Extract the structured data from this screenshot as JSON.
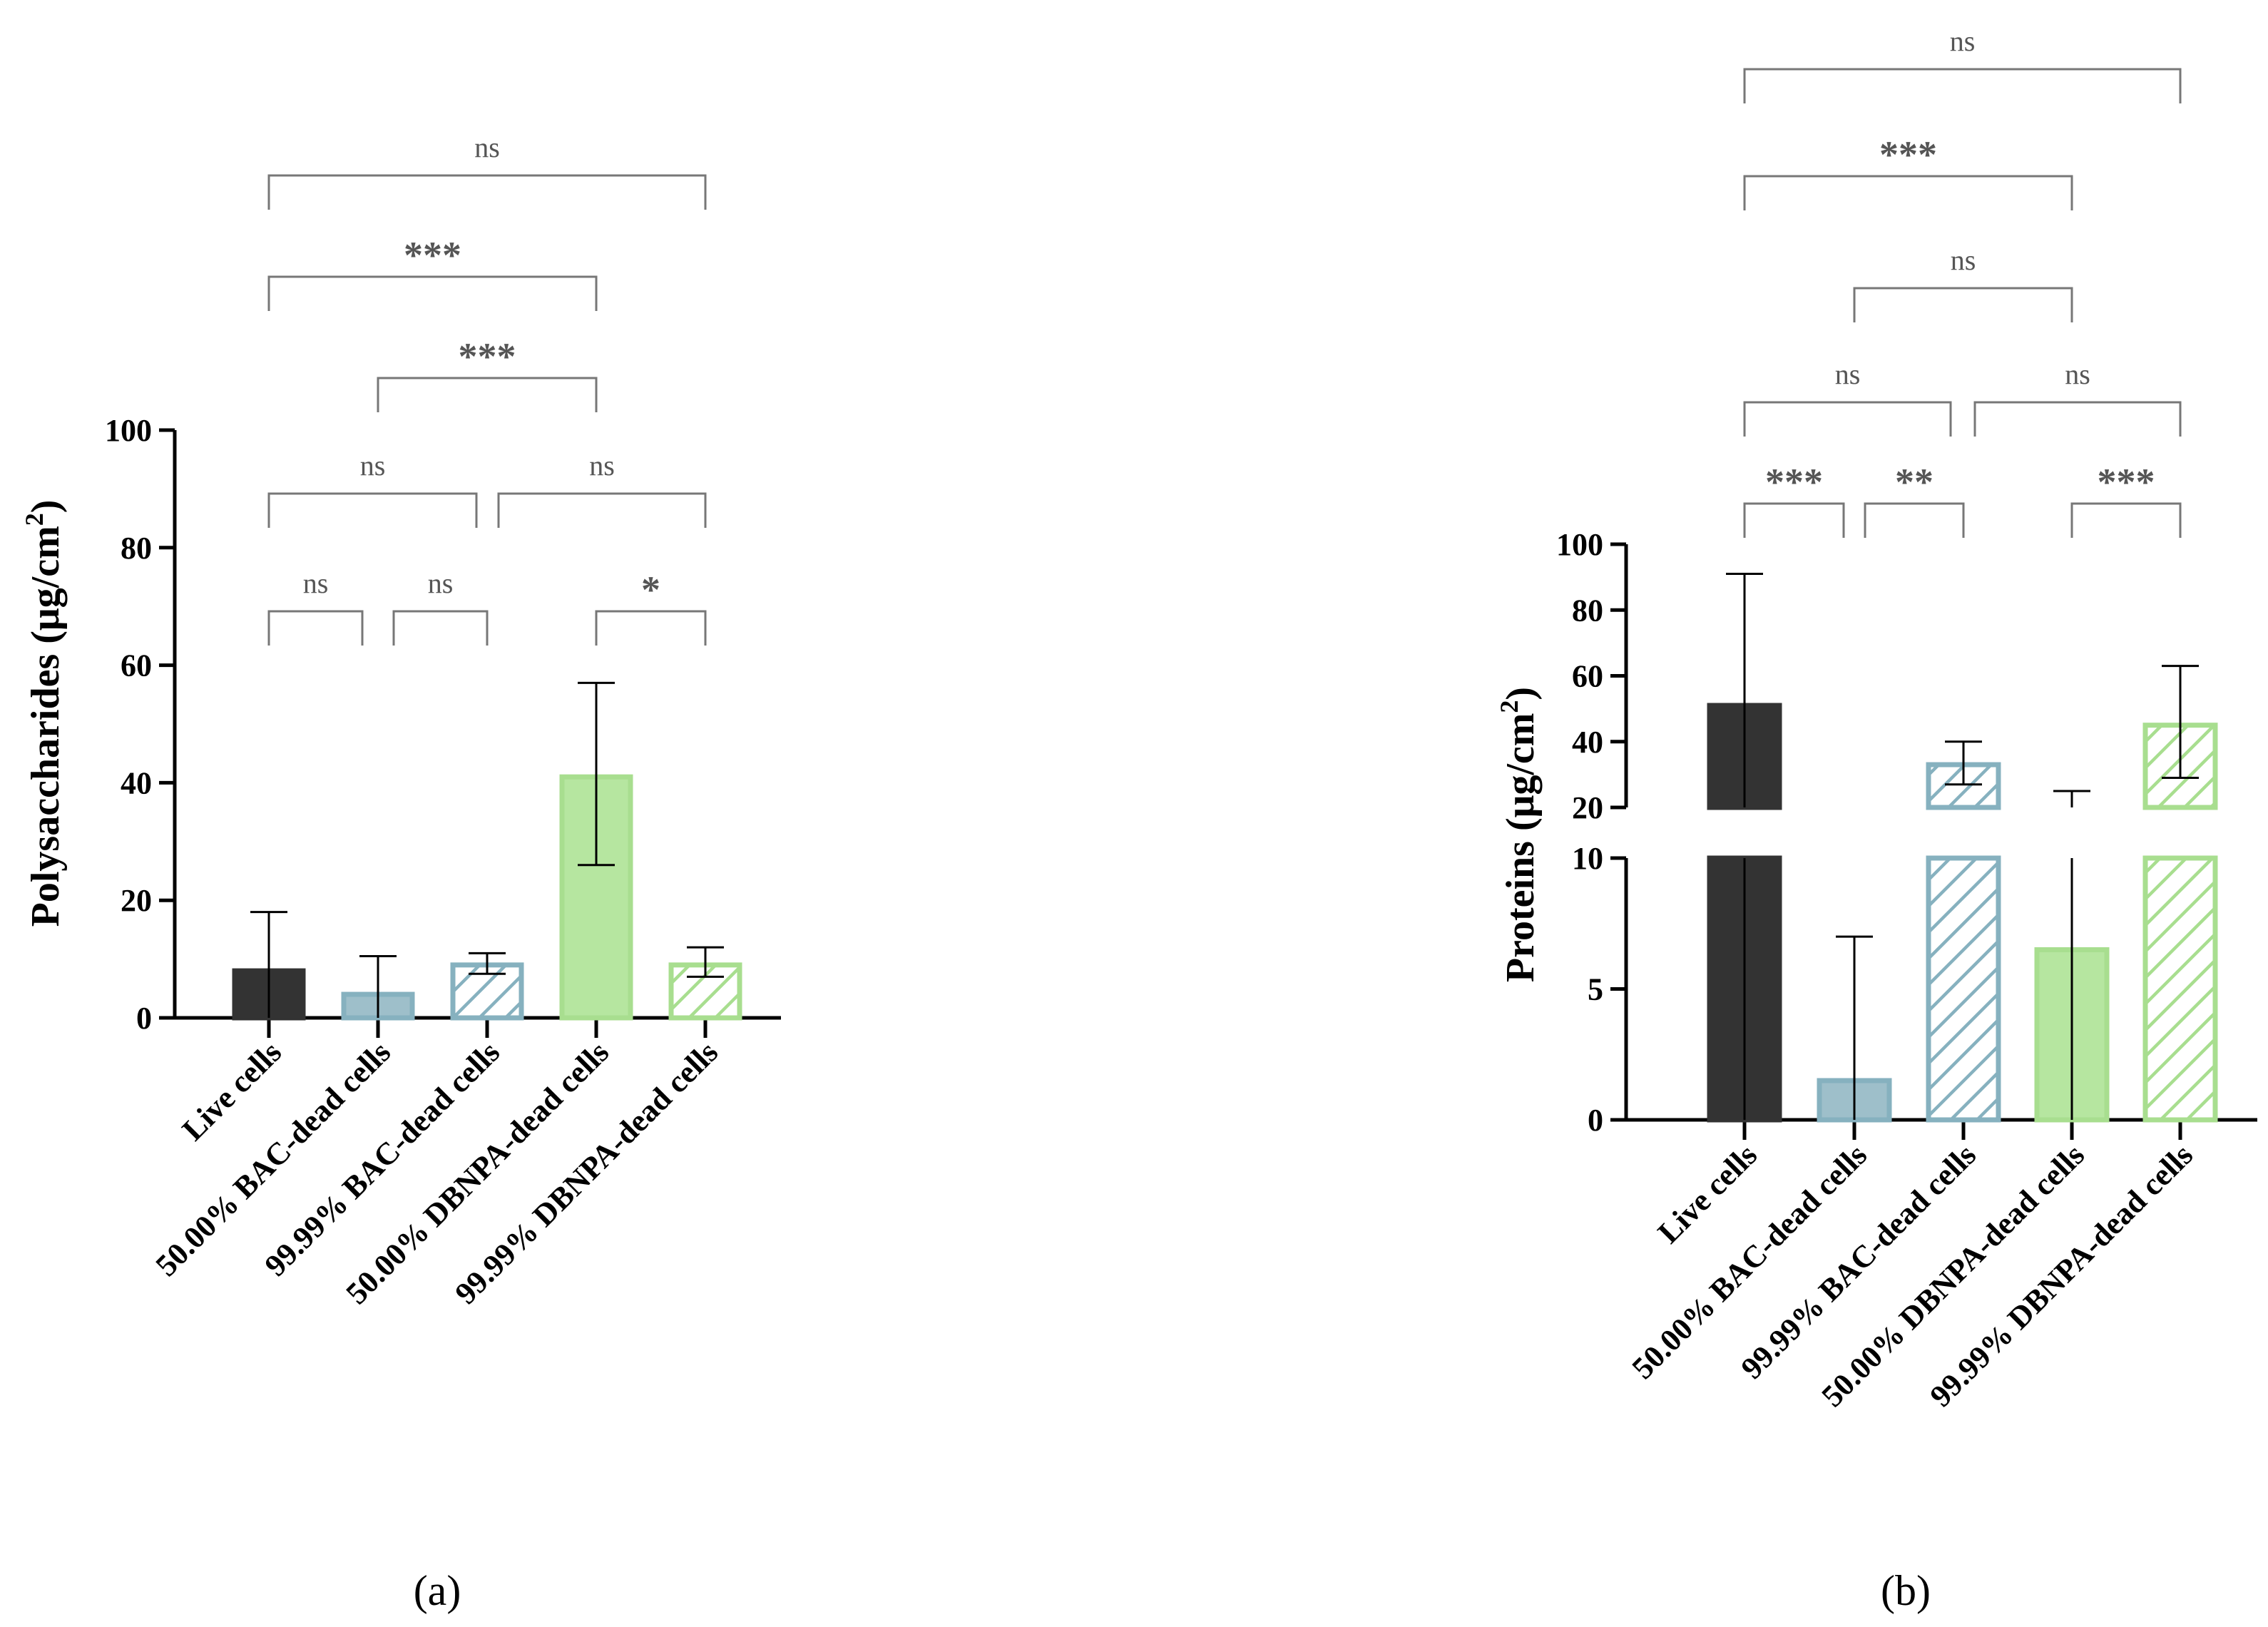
{
  "colors": {
    "live": "#333333",
    "bac": "#86b1bf",
    "bac_fill": "#9ebfca",
    "dbnpa": "#a8de8f",
    "dbnpa_fill": "#b6e6a0",
    "bracket": "#777777"
  },
  "chart_data": [
    {
      "type": "bar",
      "panel": "a",
      "ylabel": "Polysaccharides (μg/cm",
      "ylabel_sup": "2",
      "ylim": [
        0,
        100
      ],
      "yticks": [
        "0",
        "20",
        "40",
        "60",
        "80",
        "100"
      ],
      "categories": [
        "Live cells",
        "50.00% BAC-dead cells",
        "99.99% BAC-dead cells",
        "50.00% DBNPA-dead cells",
        "99.99% DBNPA-dead cells"
      ],
      "values": [
        8,
        4,
        9,
        41,
        9
      ],
      "error_low": [
        0,
        0,
        7.5,
        26,
        7
      ],
      "error_high": [
        18,
        10.5,
        11,
        57,
        12
      ],
      "comparisons": [
        {
          "from": 0,
          "to": 1,
          "label": "ns"
        },
        {
          "from": 1,
          "to": 2,
          "label": "ns"
        },
        {
          "from": 3,
          "to": 4,
          "label": "*"
        },
        {
          "from": 0,
          "to": 2,
          "label": "ns"
        },
        {
          "from": 2,
          "to": 4,
          "label": "ns"
        },
        {
          "from": 1,
          "to": 3,
          "label": "***"
        },
        {
          "from": 0,
          "to": 3,
          "label": "***"
        },
        {
          "from": 0,
          "to": 4,
          "label": "ns"
        }
      ]
    },
    {
      "type": "bar",
      "panel": "b",
      "ylabel": "Proteins (μg/cm",
      "ylabel_sup": "2",
      "ylabel_close": ")",
      "axis_break": {
        "lower": [
          0,
          10
        ],
        "upper": [
          20,
          100
        ]
      },
      "yticks_lower": [
        "0",
        "5",
        "10"
      ],
      "yticks_upper": [
        "20",
        "40",
        "60",
        "80",
        "100"
      ],
      "categories": [
        "Live cells",
        "50.00% BAC-dead cells",
        "99.99% BAC-dead cells",
        "50.00% DBNPA-dead cells",
        "99.99% DBNPA-dead cells"
      ],
      "values": [
        51,
        1.5,
        33,
        6.5,
        45
      ],
      "error_low": [
        0,
        0,
        27,
        0,
        29
      ],
      "error_high": [
        91,
        7,
        40,
        25,
        63
      ],
      "comparisons": [
        {
          "from": 0,
          "to": 1,
          "label": "***"
        },
        {
          "from": 1,
          "to": 2,
          "label": "**"
        },
        {
          "from": 3,
          "to": 4,
          "label": "***"
        },
        {
          "from": 0,
          "to": 2,
          "label": "ns"
        },
        {
          "from": 2,
          "to": 4,
          "label": "ns"
        },
        {
          "from": 1,
          "to": 3,
          "label": "ns"
        },
        {
          "from": 0,
          "to": 3,
          "label": "***"
        },
        {
          "from": 0,
          "to": 4,
          "label": "ns"
        }
      ]
    }
  ],
  "panel_labels": [
    "(a)",
    "(b)"
  ]
}
